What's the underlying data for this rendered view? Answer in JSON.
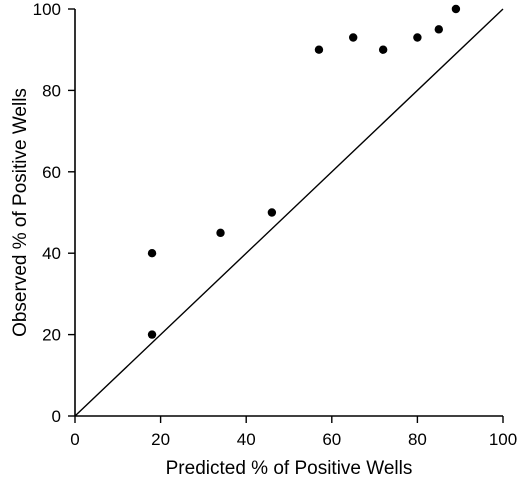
{
  "chart_data": {
    "type": "scatter",
    "title": "",
    "xlabel": "Predicted % of Positive Wells",
    "ylabel": "Observed % of Positive Wells",
    "xlim": [
      0,
      100
    ],
    "ylim": [
      0,
      100
    ],
    "xticks": [
      0,
      20,
      40,
      60,
      80,
      100
    ],
    "yticks": [
      0,
      20,
      40,
      60,
      80,
      100
    ],
    "grid": false,
    "legend": "none",
    "reference_line": {
      "x": [
        0,
        100
      ],
      "y": [
        0,
        100
      ]
    },
    "series": [
      {
        "points": [
          {
            "x": 18,
            "y": 40
          },
          {
            "x": 18,
            "y": 20
          },
          {
            "x": 34,
            "y": 45
          },
          {
            "x": 46,
            "y": 50
          },
          {
            "x": 57,
            "y": 90
          },
          {
            "x": 65,
            "y": 93
          },
          {
            "x": 72,
            "y": 90
          },
          {
            "x": 80,
            "y": 93
          },
          {
            "x": 85,
            "y": 95
          },
          {
            "x": 89,
            "y": 100
          }
        ]
      }
    ],
    "colors": {
      "marker": "#000000",
      "axis": "#000000",
      "background": "#ffffff"
    }
  }
}
